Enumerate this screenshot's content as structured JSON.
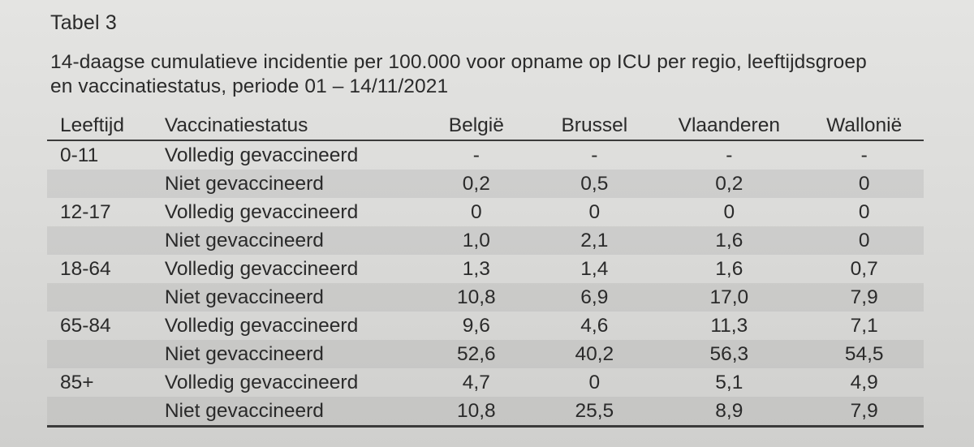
{
  "table_label": "Tabel 3",
  "caption": [
    "14-daagse cumulatieve incidentie per 100.000 voor opname op ICU per regio, leeftijdsgroep",
    "en vaccinatiestatus, periode 01 – 14/11/2021"
  ],
  "headers": [
    "Leeftijd",
    "Vaccinatiestatus",
    "België",
    "Brussel",
    "Vlaanderen",
    "Wallonië"
  ],
  "rows": [
    {
      "age": "0-11",
      "status": "Volledig gevaccineerd",
      "values": [
        "-",
        "-",
        "-",
        "-"
      ]
    },
    {
      "age": "",
      "status": "Niet gevaccineerd",
      "values": [
        "0,2",
        "0,5",
        "0,2",
        "0"
      ]
    },
    {
      "age": "12-17",
      "status": "Volledig gevaccineerd",
      "values": [
        "0",
        "0",
        "0",
        "0"
      ]
    },
    {
      "age": "",
      "status": "Niet gevaccineerd",
      "values": [
        "1,0",
        "2,1",
        "1,6",
        "0"
      ]
    },
    {
      "age": "18-64",
      "status": "Volledig gevaccineerd",
      "values": [
        "1,3",
        "1,4",
        "1,6",
        "0,7"
      ]
    },
    {
      "age": "",
      "status": "Niet gevaccineerd",
      "values": [
        "10,8",
        "6,9",
        "17,0",
        "7,9"
      ]
    },
    {
      "age": "65-84",
      "status": "Volledig gevaccineerd",
      "values": [
        "9,6",
        "4,6",
        "11,3",
        "7,1"
      ]
    },
    {
      "age": "",
      "status": "Niet gevaccineerd",
      "values": [
        "52,6",
        "40,2",
        "56,3",
        "54,5"
      ]
    },
    {
      "age": "85+",
      "status": "Volledig gevaccineerd",
      "values": [
        "4,7",
        "0",
        "5,1",
        "4,9"
      ]
    },
    {
      "age": "",
      "status": "Niet gevaccineerd",
      "values": [
        "10,8",
        "25,5",
        "8,9",
        "7,9"
      ]
    }
  ]
}
